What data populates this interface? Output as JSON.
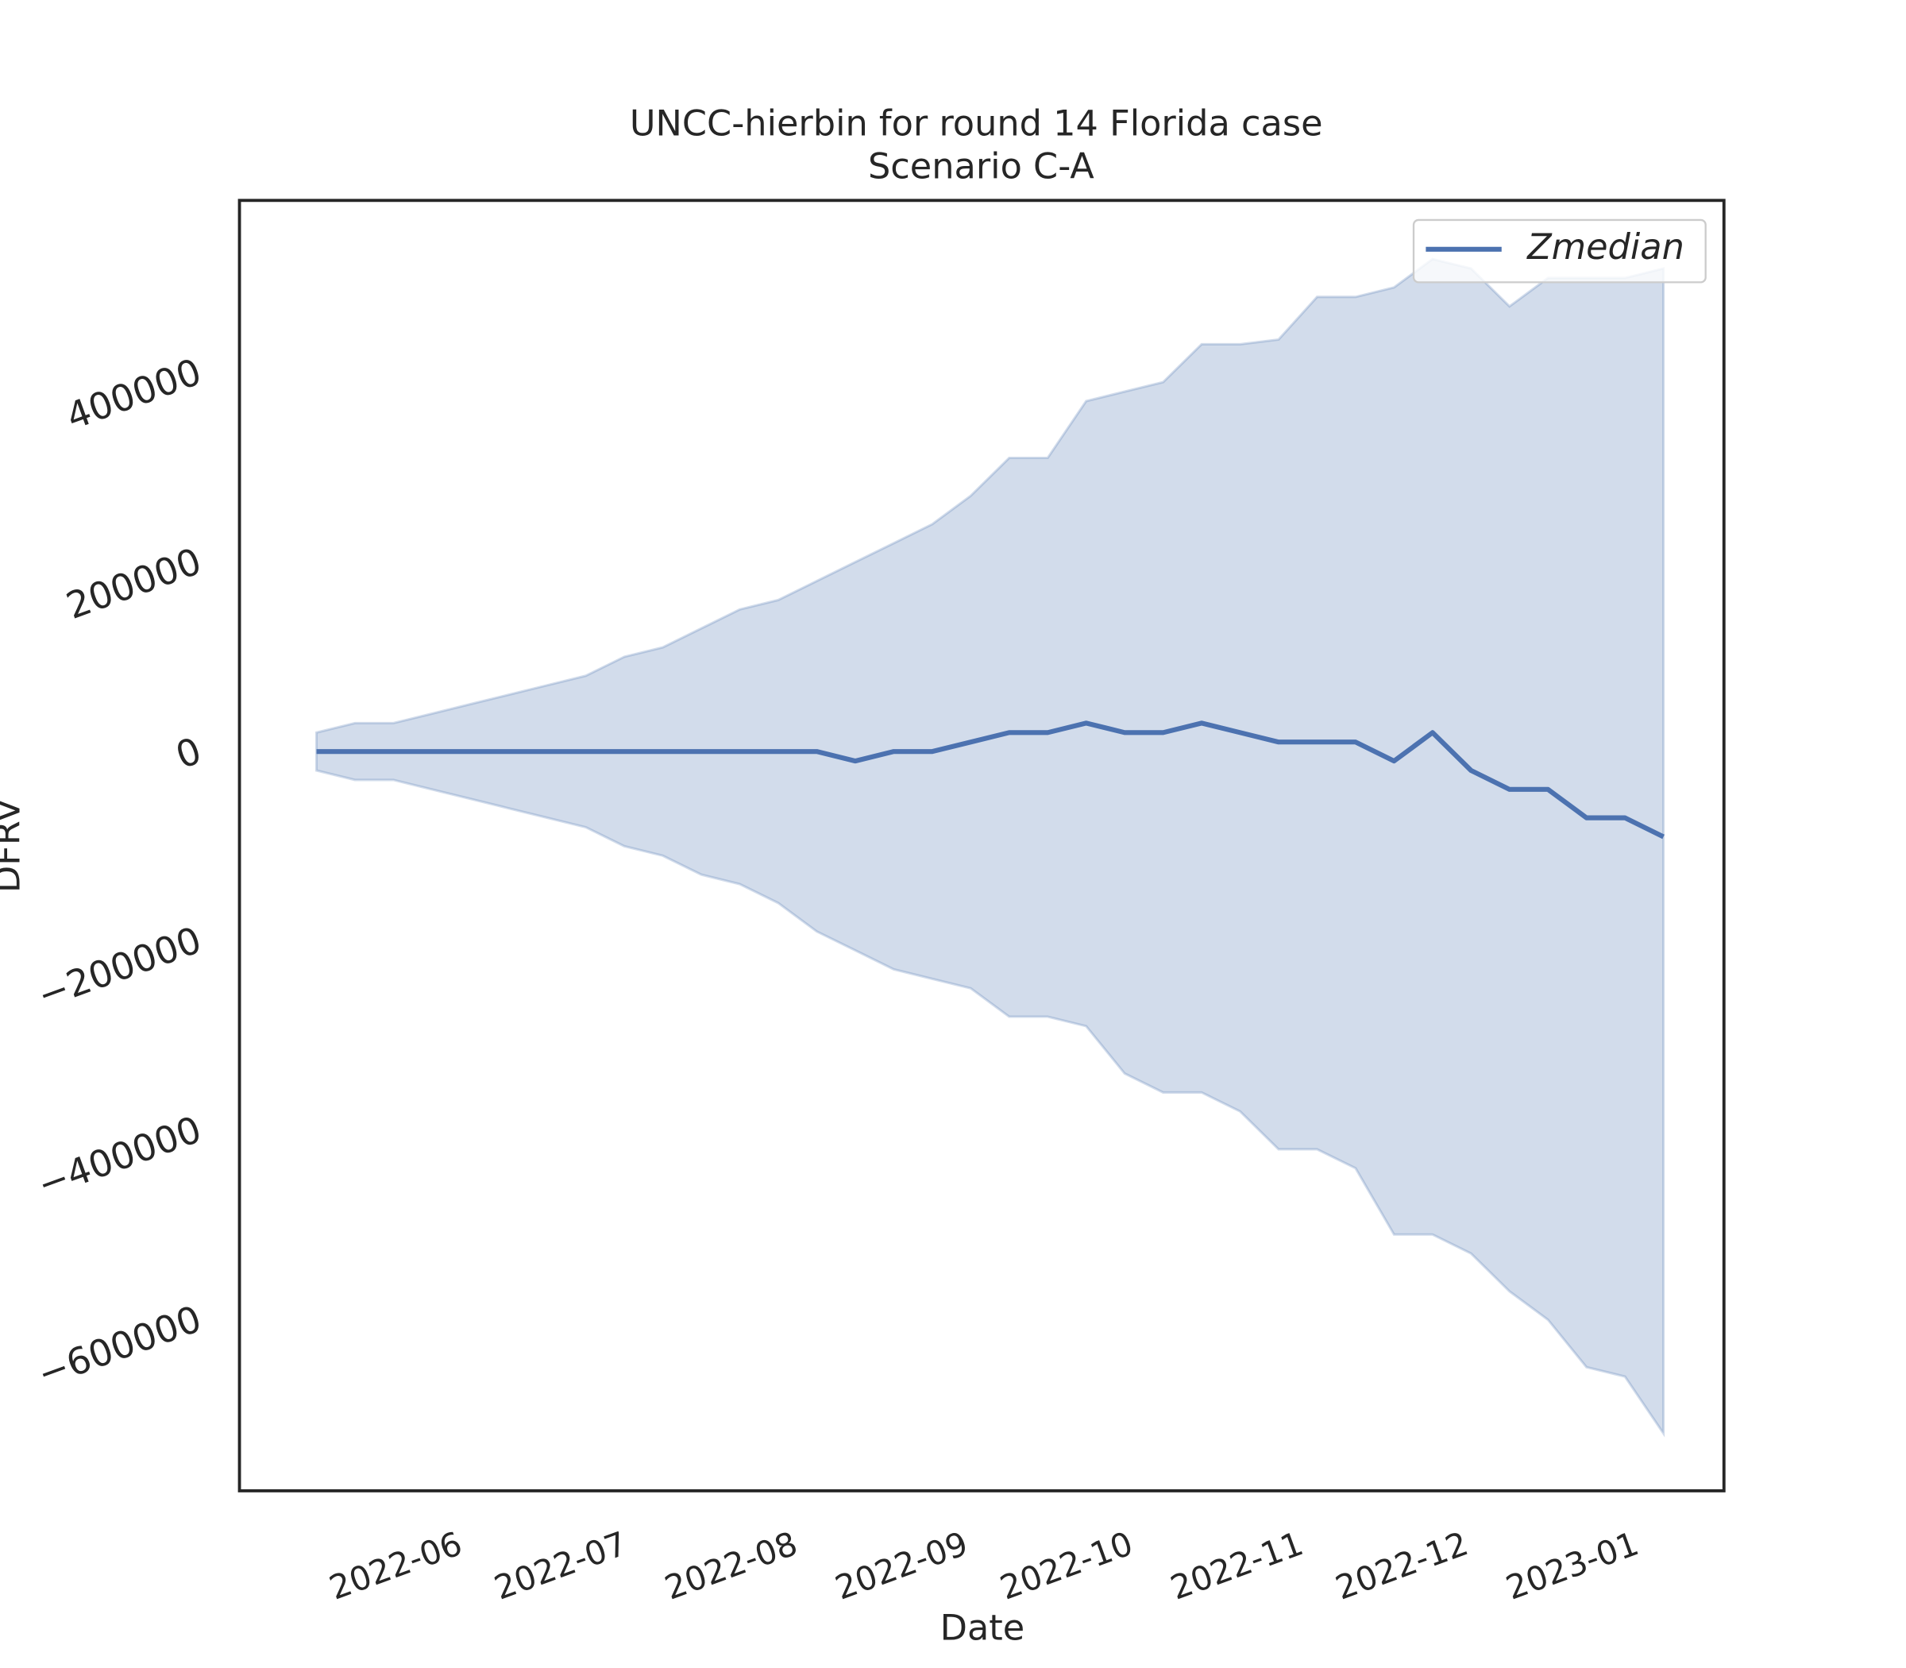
{
  "chart_data": {
    "type": "line",
    "title": "UNCC-hierbin for round 14 Florida case",
    "subtitle": "Scenario C-A",
    "x_label": "Date",
    "y_label": "DFRV",
    "x": [
      "2022-05-07",
      "2022-05-14",
      "2022-05-21",
      "2022-05-28",
      "2022-06-04",
      "2022-06-11",
      "2022-06-18",
      "2022-06-25",
      "2022-07-02",
      "2022-07-09",
      "2022-07-16",
      "2022-07-23",
      "2022-07-30",
      "2022-08-06",
      "2022-08-13",
      "2022-08-20",
      "2022-08-27",
      "2022-09-03",
      "2022-09-10",
      "2022-09-17",
      "2022-09-24",
      "2022-10-01",
      "2022-10-08",
      "2022-10-15",
      "2022-10-22",
      "2022-10-29",
      "2022-11-05",
      "2022-11-12",
      "2022-11-19",
      "2022-11-26",
      "2022-12-03",
      "2022-12-10",
      "2022-12-17",
      "2022-12-24",
      "2022-12-31",
      "2023-01-07"
    ],
    "series": [
      {
        "name": "Zmedian",
        "color": "#4c72b0",
        "values": [
          0,
          0,
          0,
          0,
          0,
          0,
          0,
          0,
          0,
          0,
          0,
          0,
          0,
          0,
          -10000,
          0,
          0,
          10000,
          20000,
          20000,
          30000,
          20000,
          20000,
          30000,
          20000,
          10000,
          10000,
          10000,
          -10000,
          20000,
          -20000,
          -40000,
          -40000,
          -70000,
          -70000,
          -90000
        ]
      }
    ],
    "band": {
      "color": "#4c72b0",
      "upper": [
        20000,
        30000,
        30000,
        40000,
        50000,
        60000,
        70000,
        80000,
        100000,
        110000,
        130000,
        150000,
        160000,
        180000,
        200000,
        220000,
        240000,
        270000,
        310000,
        310000,
        370000,
        380000,
        390000,
        430000,
        430000,
        435000,
        480000,
        480000,
        490000,
        520000,
        510000,
        470000,
        500000,
        500000,
        500000,
        510000
      ],
      "lower": [
        -20000,
        -30000,
        -30000,
        -40000,
        -50000,
        -60000,
        -70000,
        -80000,
        -100000,
        -110000,
        -130000,
        -140000,
        -160000,
        -190000,
        -210000,
        -230000,
        -240000,
        -250000,
        -280000,
        -280000,
        -290000,
        -340000,
        -360000,
        -360000,
        -380000,
        -420000,
        -420000,
        -440000,
        -510000,
        -510000,
        -530000,
        -570000,
        -600000,
        -650000,
        -660000,
        -720000
      ]
    },
    "xlim": [
      "2022-04-23",
      "2023-01-18"
    ],
    "xticks": [
      {
        "value": "2022-06-01",
        "label": "2022-06"
      },
      {
        "value": "2022-07-01",
        "label": "2022-07"
      },
      {
        "value": "2022-08-01",
        "label": "2022-08"
      },
      {
        "value": "2022-09-01",
        "label": "2022-09"
      },
      {
        "value": "2022-10-01",
        "label": "2022-10"
      },
      {
        "value": "2022-11-01",
        "label": "2022-11"
      },
      {
        "value": "2022-12-01",
        "label": "2022-12"
      },
      {
        "value": "2023-01-01",
        "label": "2023-01"
      }
    ],
    "ylim": [
      -780600,
      581900
    ],
    "yticks": [
      {
        "value": -600000,
        "label": "−600000"
      },
      {
        "value": -400000,
        "label": "−400000"
      },
      {
        "value": -200000,
        "label": "−200000"
      },
      0,
      200000,
      400000
    ],
    "grid": false,
    "legend_position": "upper right"
  }
}
